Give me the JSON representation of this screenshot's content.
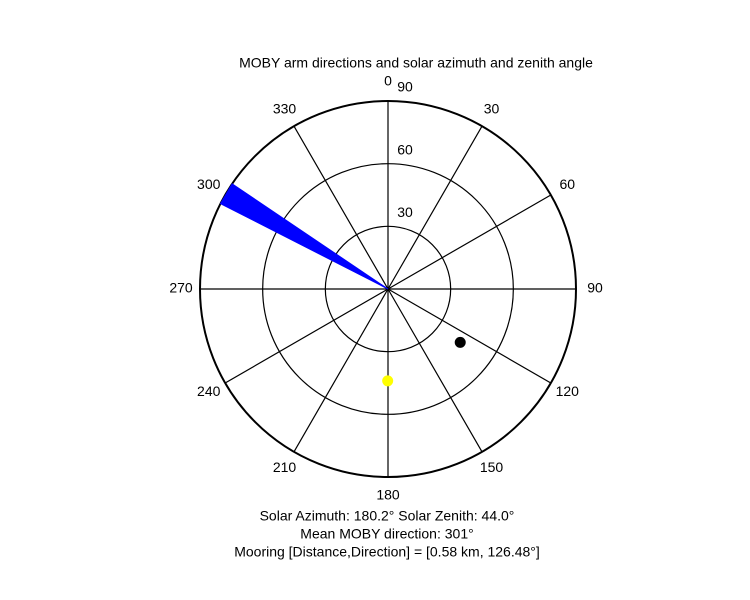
{
  "chart_data": {
    "type": "polar",
    "title": "MOBY arm directions and solar azimuth and zenith angle",
    "rlim": [
      0,
      90
    ],
    "rticks": [
      30,
      60,
      90
    ],
    "thetaticks": [
      0,
      30,
      60,
      90,
      120,
      150,
      180,
      210,
      240,
      270,
      300,
      330
    ],
    "wedge": {
      "theta": [
        297,
        304
      ],
      "r": 90,
      "color": "#0000ff"
    },
    "points": [
      {
        "theta": 180.2,
        "r": 44,
        "color": "#ffff00"
      },
      {
        "theta": 126.48,
        "r": 43,
        "color": "#000000"
      }
    ],
    "annotations": [
      "Solar Azimuth: 180.2°   Solar Zenith: 44.0°",
      "Mean MOBY direction: 301°",
      "Mooring [Distance,Direction] = [0.58 km, 126.48°]"
    ]
  }
}
